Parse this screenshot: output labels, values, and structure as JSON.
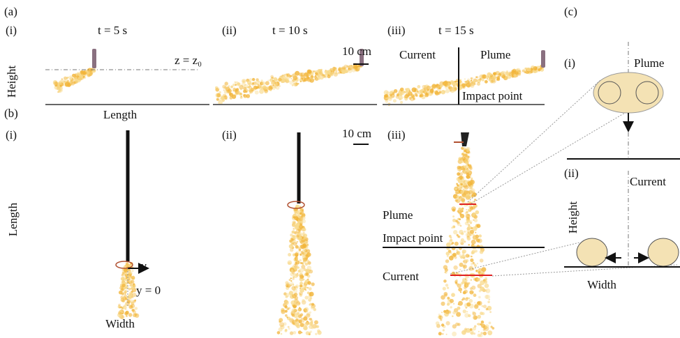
{
  "panel_a": {
    "label": "(a)",
    "panels": [
      {
        "label": "(i)",
        "time": "t = 5 s"
      },
      {
        "label": "(ii)",
        "time": "t = 10 s"
      },
      {
        "label": "(iii)",
        "time": "t = 15 s"
      }
    ],
    "height_axis": "Height",
    "length_axis": "Length",
    "reference_level": "z = z₀",
    "scale_bar": "10 cm",
    "current": "Current",
    "plume": "Plume",
    "impact_point": "Impact point"
  },
  "panel_b": {
    "label": "(b)",
    "panels": [
      "(i)",
      "(ii)",
      "(iii)"
    ],
    "length_axis": "Length",
    "width_axis": "Width",
    "y_axis": "y",
    "y_origin": "y = 0",
    "scale_bar": "10 cm",
    "plume": "Plume",
    "impact_point": "Impact point",
    "current": "Current"
  },
  "panel_c": {
    "label": "(c)",
    "panels": [
      {
        "label": "(i)",
        "regime": "Plume"
      },
      {
        "label": "(ii)",
        "regime": "Current"
      }
    ],
    "height_axis": "Height",
    "width_axis": "Width"
  }
}
